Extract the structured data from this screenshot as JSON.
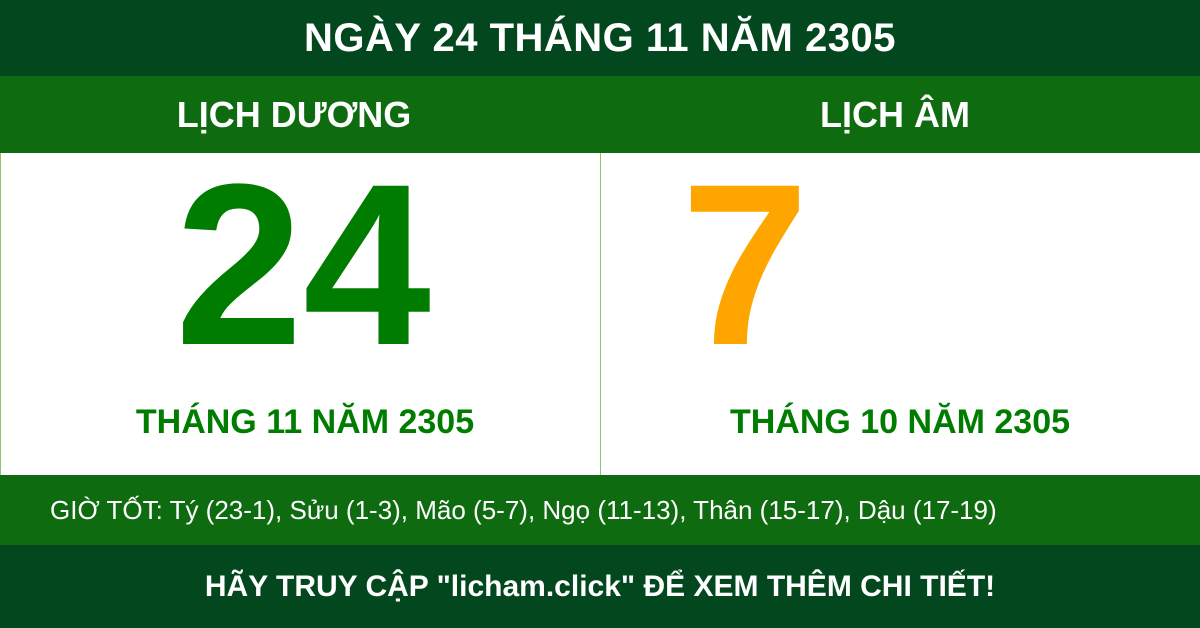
{
  "header": {
    "title": "NGÀY 24 THÁNG 11 NĂM 2305"
  },
  "solar": {
    "label": "LỊCH DƯƠNG",
    "day": "24",
    "month_year": "THÁNG 11 NĂM 2305"
  },
  "lunar": {
    "label": "LỊCH ÂM",
    "day": "7",
    "month_year": "THÁNG 10 NĂM 2305"
  },
  "good_hours": "GIỜ TỐT: Tý (23-1), Sửu (1-3), Mão (5-7), Ngọ (11-13), Thân (15-17), Dậu (17-19)",
  "footer": {
    "cta": "HÃY TRUY CẬP \"licham.click\" ĐỂ XEM THÊM CHI TIẾT!"
  },
  "colors": {
    "dark_green": "#03471f",
    "green": "#0f6b10",
    "solar_day": "#007d00",
    "lunar_day": "#ffa500"
  }
}
